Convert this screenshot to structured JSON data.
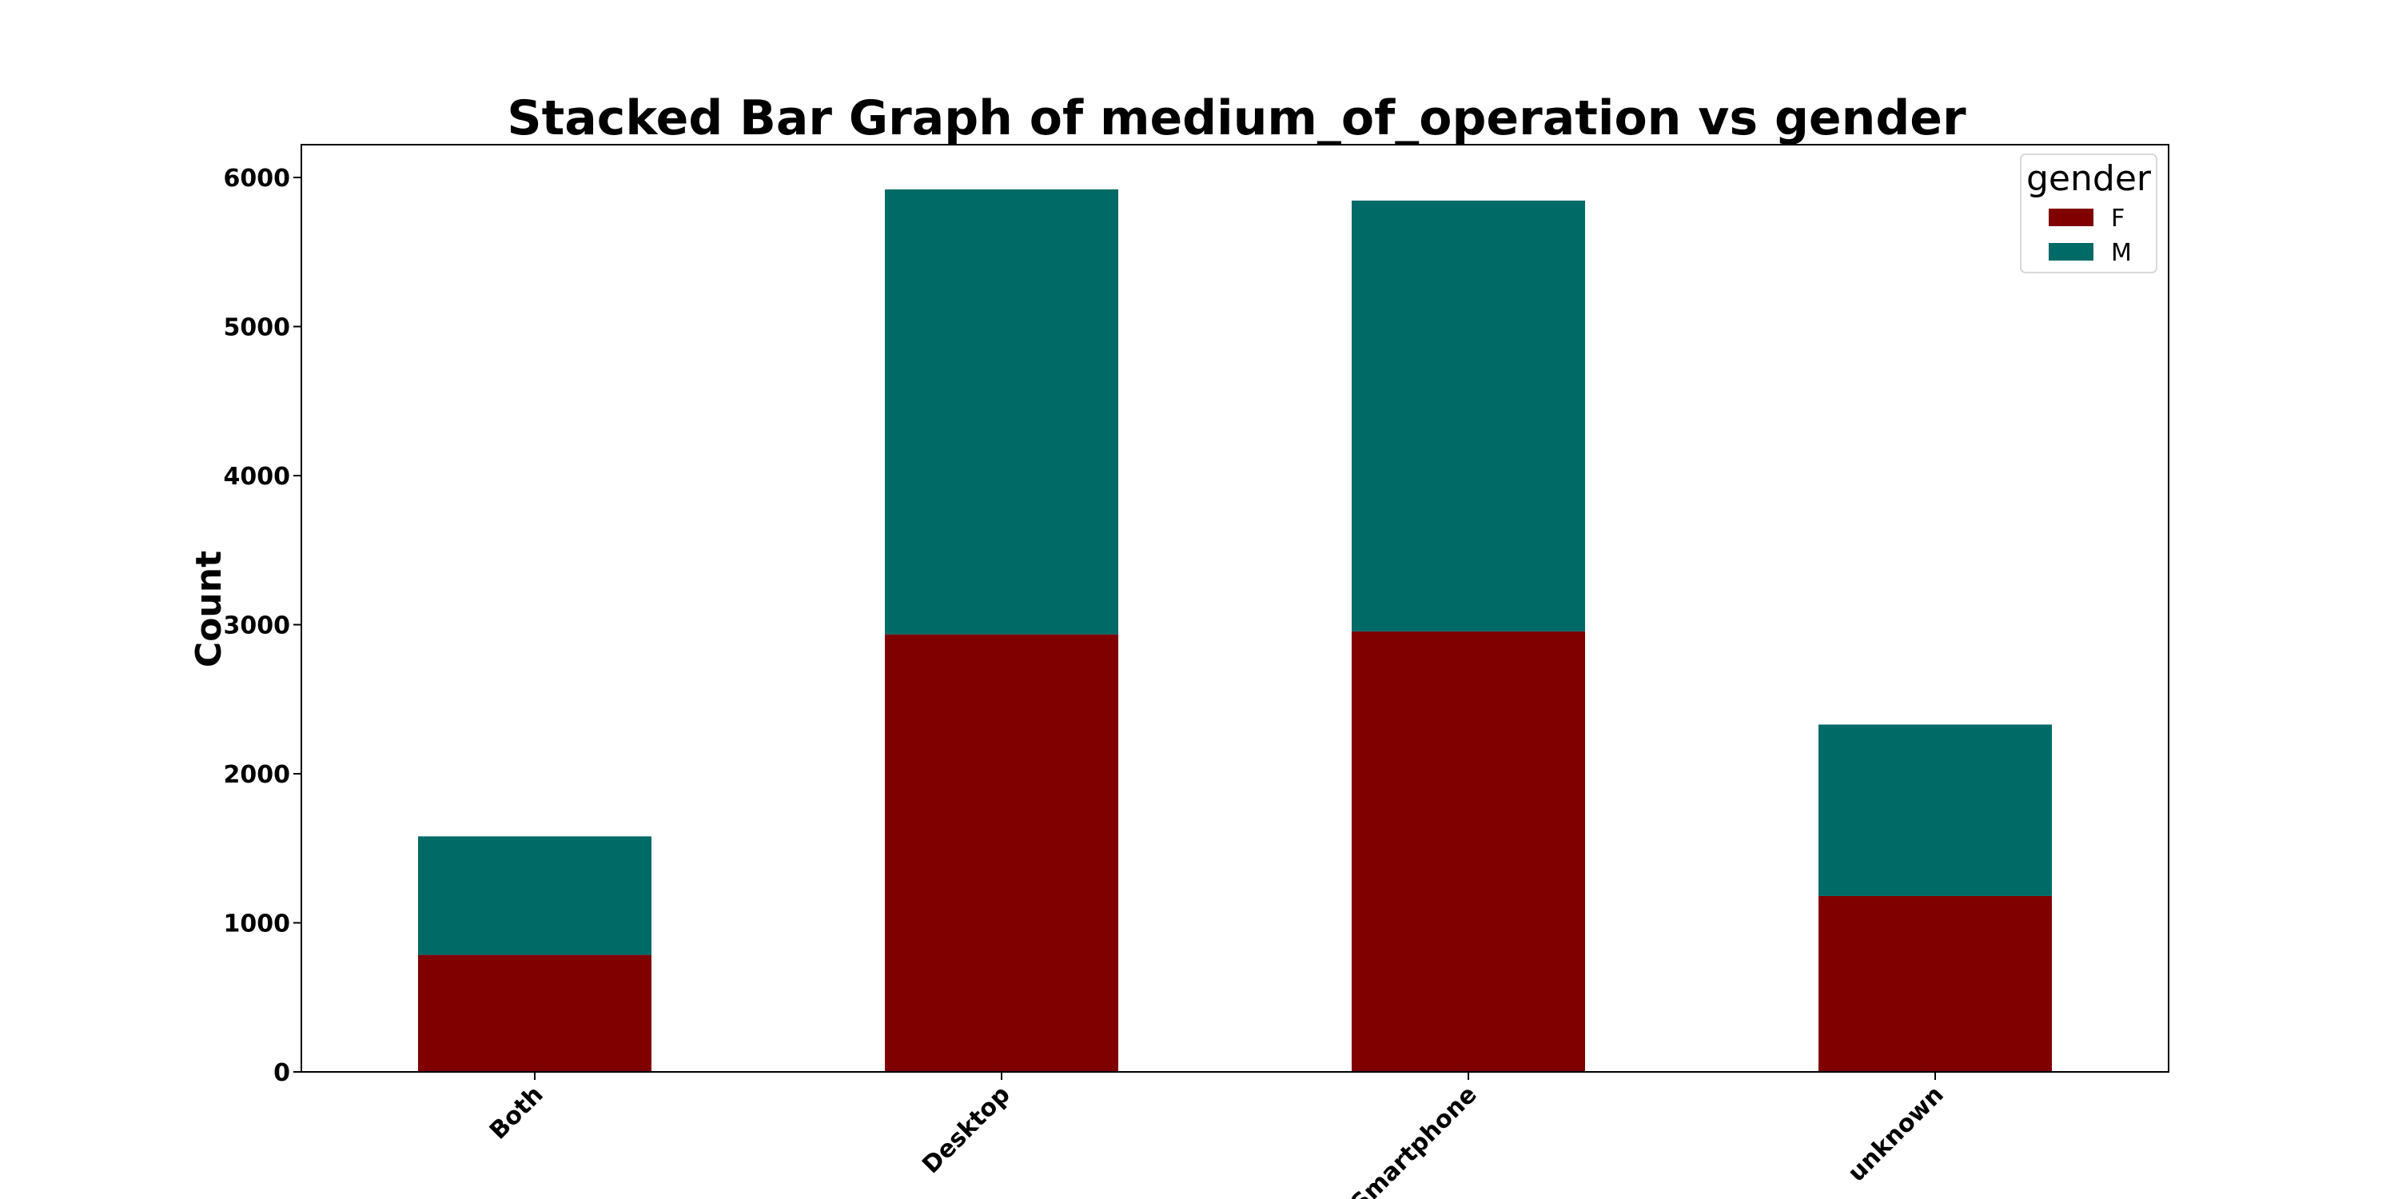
{
  "colors": {
    "F": "#800000",
    "M": "#006a67"
  },
  "chart_data": {
    "type": "bar",
    "stacked": true,
    "title": "Stacked Bar Graph of medium_of_operation vs gender",
    "xlabel": "",
    "ylabel": "Count",
    "ylim": [
      0,
      6220
    ],
    "yticks": [
      0,
      1000,
      2000,
      3000,
      4000,
      5000,
      6000
    ],
    "categories": [
      "Both",
      "Desktop",
      "Smartphone",
      "unknown"
    ],
    "series": [
      {
        "name": "F",
        "values": [
          785,
          2935,
          2955,
          1180
        ]
      },
      {
        "name": "M",
        "values": [
          795,
          2985,
          2890,
          1150
        ]
      }
    ],
    "legend": {
      "title": "gender",
      "placement": "top-right"
    },
    "grid": false
  }
}
